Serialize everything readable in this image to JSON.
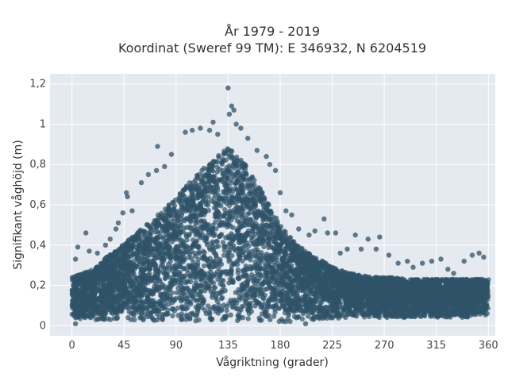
{
  "chart_data": {
    "type": "scatter",
    "title_line1": "År 1979 - 2019",
    "title_line2": "Koordinat (Sweref 99 TM): E 346932, N 6204519",
    "xlabel": "Vågriktning (grader)",
    "ylabel": "Signifikant våghöjd (m)",
    "xlim": [
      -19,
      366
    ],
    "ylim": [
      -0.05,
      1.25
    ],
    "x_ticks": [
      0,
      45,
      90,
      135,
      180,
      225,
      270,
      315,
      360
    ],
    "y_ticks": [
      {
        "value": 0,
        "label": "0"
      },
      {
        "value": 0.2,
        "label": "0,2"
      },
      {
        "value": 0.4,
        "label": "0,4"
      },
      {
        "value": 0.6,
        "label": "0,6"
      },
      {
        "value": 0.8,
        "label": "0,8"
      },
      {
        "value": 1.0,
        "label": "1"
      },
      {
        "value": 1.2,
        "label": "1,2"
      }
    ],
    "grid": true,
    "marker_color": "#2f5268",
    "plot_bg": "#e5e9f0",
    "envelope": {
      "x": [
        0,
        10,
        20,
        30,
        40,
        50,
        60,
        70,
        80,
        90,
        100,
        110,
        120,
        130,
        135,
        140,
        150,
        160,
        170,
        180,
        190,
        200,
        210,
        220,
        230,
        240,
        250,
        260,
        270,
        280,
        290,
        300,
        310,
        320,
        330,
        340,
        350,
        360
      ],
      "upper": [
        0.24,
        0.26,
        0.29,
        0.34,
        0.38,
        0.43,
        0.48,
        0.53,
        0.58,
        0.64,
        0.7,
        0.76,
        0.82,
        0.86,
        0.88,
        0.86,
        0.8,
        0.72,
        0.6,
        0.5,
        0.43,
        0.38,
        0.34,
        0.31,
        0.28,
        0.26,
        0.25,
        0.24,
        0.24,
        0.24,
        0.23,
        0.23,
        0.23,
        0.23,
        0.23,
        0.23,
        0.23,
        0.23
      ],
      "lower": [
        0.04,
        0.03,
        0.03,
        0.03,
        0.03,
        0.03,
        0.02,
        0.02,
        0.02,
        0.02,
        0.02,
        0.02,
        0.02,
        0.02,
        0.02,
        0.02,
        0.02,
        0.02,
        0.02,
        0.02,
        0.02,
        0.03,
        0.03,
        0.03,
        0.03,
        0.04,
        0.04,
        0.04,
        0.04,
        0.04,
        0.04,
        0.04,
        0.04,
        0.04,
        0.04,
        0.04,
        0.05,
        0.05
      ]
    },
    "outlier_points": [
      [
        135,
        1.18
      ],
      [
        138,
        1.09
      ],
      [
        140,
        1.07
      ],
      [
        136,
        1.05
      ],
      [
        122,
        1.01
      ],
      [
        111,
        0.98
      ],
      [
        104,
        0.97
      ],
      [
        98,
        0.96
      ],
      [
        119,
        0.97
      ],
      [
        146,
        0.98
      ],
      [
        142,
        1.0
      ],
      [
        152,
        0.93
      ],
      [
        126,
        0.95
      ],
      [
        160,
        0.87
      ],
      [
        171,
        0.8
      ],
      [
        168,
        0.84
      ],
      [
        74,
        0.89
      ],
      [
        86,
        0.85
      ],
      [
        66,
        0.75
      ],
      [
        73,
        0.77
      ],
      [
        80,
        0.79
      ],
      [
        60,
        0.71
      ],
      [
        47,
        0.66
      ],
      [
        48,
        0.64
      ],
      [
        52,
        0.57
      ],
      [
        40,
        0.51
      ],
      [
        44,
        0.56
      ],
      [
        38,
        0.48
      ],
      [
        33,
        0.43
      ],
      [
        29,
        0.4
      ],
      [
        12,
        0.46
      ],
      [
        5,
        0.39
      ],
      [
        15,
        0.37
      ],
      [
        22,
        0.36
      ],
      [
        3,
        0.33
      ],
      [
        176,
        0.77
      ],
      [
        180,
        0.66
      ],
      [
        185,
        0.57
      ],
      [
        190,
        0.55
      ],
      [
        196,
        0.48
      ],
      [
        205,
        0.45
      ],
      [
        210,
        0.47
      ],
      [
        218,
        0.53
      ],
      [
        221,
        0.46
      ],
      [
        228,
        0.46
      ],
      [
        238,
        0.38
      ],
      [
        245,
        0.45
      ],
      [
        256,
        0.43
      ],
      [
        266,
        0.44
      ],
      [
        263,
        0.38
      ],
      [
        274,
        0.35
      ],
      [
        282,
        0.31
      ],
      [
        290,
        0.32
      ],
      [
        303,
        0.31
      ],
      [
        311,
        0.32
      ],
      [
        319,
        0.33
      ],
      [
        325,
        0.28
      ],
      [
        339,
        0.32
      ],
      [
        346,
        0.35
      ],
      [
        352,
        0.36
      ],
      [
        356,
        0.34
      ],
      [
        330,
        0.26
      ],
      [
        295,
        0.29
      ],
      [
        250,
        0.38
      ],
      [
        232,
        0.36
      ],
      [
        258,
        0.08
      ],
      [
        202,
        0.01
      ],
      [
        3,
        0.01
      ],
      [
        95,
        0.03
      ],
      [
        310,
        0.06
      ],
      [
        340,
        0.06
      ],
      [
        275,
        0.06
      ]
    ]
  }
}
